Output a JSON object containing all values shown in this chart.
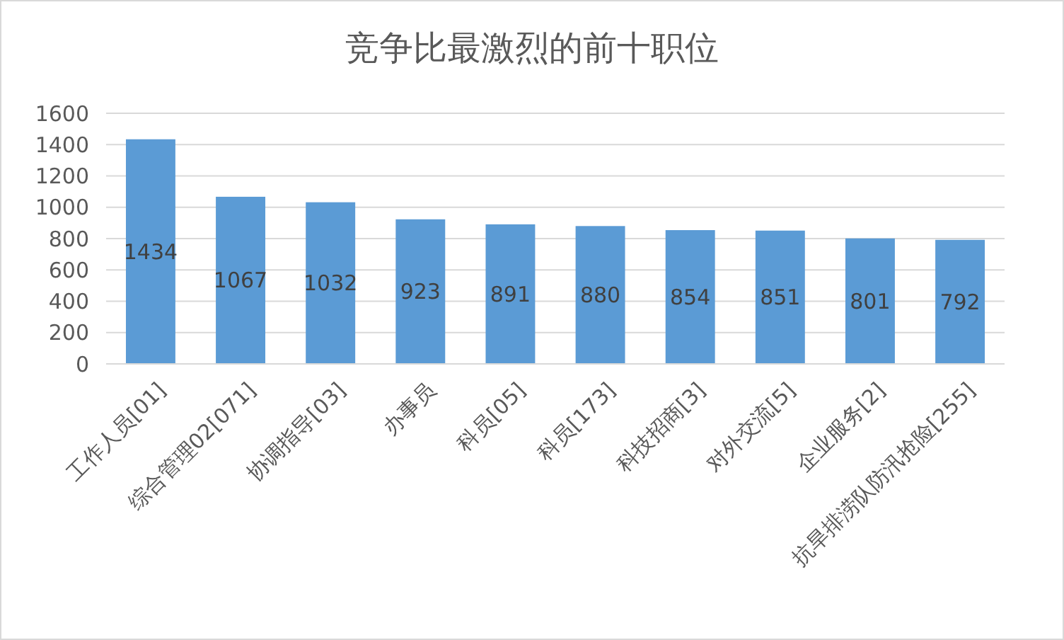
{
  "chart_data": {
    "type": "bar",
    "title": "竞争比最激烈的前十职位",
    "categories": [
      "工作人员[01]",
      "综合管理02[071]",
      "协调指导[03]",
      "办事员",
      "科员[05]",
      "科员[173]",
      "科技招商[3]",
      "对外交流[5]",
      "企业服务[2]",
      "抗旱排涝队防汛抢险[255]"
    ],
    "values": [
      1434,
      1067,
      1032,
      923,
      891,
      880,
      854,
      851,
      801,
      792
    ],
    "color": "#5b9bd5",
    "ylim": [
      0,
      1600
    ],
    "yticks": [
      0,
      200,
      400,
      600,
      800,
      1000,
      1200,
      1400,
      1600
    ],
    "grid": "y",
    "data_labels": true
  }
}
